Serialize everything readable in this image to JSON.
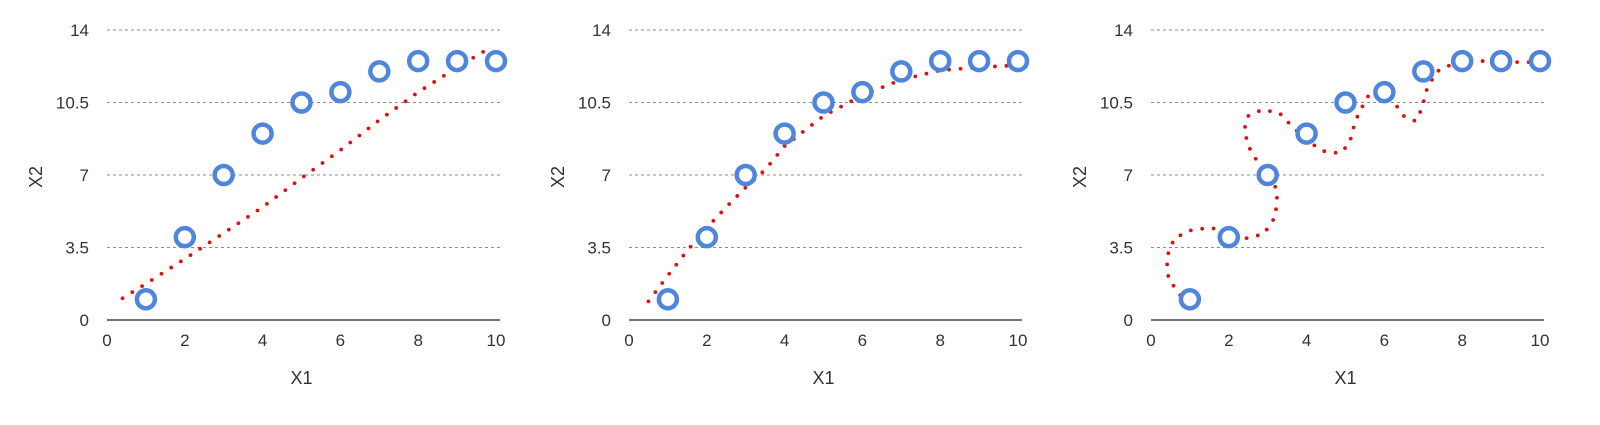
{
  "chart_data": [
    {
      "type": "scatter",
      "xlabel": "X1",
      "ylabel": "X2",
      "xlim": [
        0,
        10
      ],
      "ylim": [
        0,
        14
      ],
      "xticks": [
        "0",
        "2",
        "4",
        "6",
        "8",
        "10"
      ],
      "yticks": [
        "0",
        "3.5",
        "7",
        "10.5",
        "14"
      ],
      "grid": "horizontal dashed",
      "points": {
        "x": [
          1,
          2,
          3,
          4,
          5,
          6,
          7,
          8,
          9,
          10
        ],
        "y": [
          1,
          4,
          7,
          9,
          10.5,
          11,
          12,
          12.5,
          12.5,
          12.5
        ]
      },
      "fit_curve": {
        "style": "red dotted",
        "x": [
          0.4,
          1.0,
          2.0,
          3.0,
          4.0,
          5.0,
          6.0,
          7.0,
          8.0,
          9.0,
          9.9
        ],
        "y": [
          1.05,
          1.75,
          2.95,
          4.2,
          5.45,
          6.85,
          8.2,
          9.65,
          11.0,
          12.2,
          13.2
        ]
      }
    },
    {
      "type": "scatter",
      "xlabel": "X1",
      "ylabel": "X2",
      "xlim": [
        0,
        10
      ],
      "ylim": [
        0,
        14
      ],
      "xticks": [
        "0",
        "2",
        "4",
        "6",
        "8",
        "10"
      ],
      "yticks": [
        "0",
        "3.5",
        "7",
        "10.5",
        "14"
      ],
      "grid": "horizontal dashed",
      "points": {
        "x": [
          1,
          2,
          3,
          4,
          5,
          6,
          7,
          8,
          9,
          10
        ],
        "y": [
          1,
          4,
          7,
          9,
          10.5,
          11,
          12,
          12.5,
          12.5,
          12.5
        ]
      },
      "fit_curve": {
        "style": "red dotted",
        "x": [
          0.5,
          1.0,
          1.5,
          2.0,
          2.5,
          3.0,
          3.5,
          4.0,
          5.0,
          6.0,
          7.0,
          8.0,
          9.0,
          10.0
        ],
        "y": [
          0.9,
          2.15,
          3.35,
          4.45,
          5.45,
          6.4,
          7.25,
          8.4,
          9.85,
          10.85,
          11.6,
          12.05,
          12.2,
          12.3
        ]
      }
    },
    {
      "type": "scatter",
      "xlabel": "X1",
      "ylabel": "X2",
      "xlim": [
        0,
        10
      ],
      "ylim": [
        0,
        14
      ],
      "xticks": [
        "0",
        "2",
        "4",
        "6",
        "8",
        "10"
      ],
      "yticks": [
        "0",
        "3.5",
        "7",
        "10.5",
        "14"
      ],
      "grid": "horizontal dashed",
      "points": {
        "x": [
          1,
          2,
          3,
          4,
          5,
          6,
          7,
          8,
          9,
          10
        ],
        "y": [
          1,
          4,
          7,
          9,
          10.5,
          11,
          12,
          12.5,
          12.5,
          12.5
        ]
      },
      "fit_curve": {
        "style": "red dotted",
        "x": [
          0.75,
          0.45,
          0.4,
          0.6,
          1.05,
          1.55,
          2.0,
          2.45,
          2.9,
          3.2,
          3.25,
          3.05,
          2.75,
          2.5,
          2.4,
          2.5,
          2.85,
          3.3,
          3.65,
          4.05,
          4.45,
          4.85,
          5.1,
          5.25,
          5.55,
          5.95,
          6.15,
          6.25,
          6.5,
          6.8,
          6.95,
          7.1,
          7.35,
          7.8,
          8.3,
          8.8,
          9.3,
          9.8,
          10.0
        ],
        "y": [
          1.2,
          2.0,
          3.0,
          3.95,
          4.35,
          4.45,
          4.2,
          3.95,
          4.15,
          5.0,
          6.2,
          7.0,
          7.6,
          8.4,
          9.2,
          9.85,
          10.15,
          10.0,
          9.3,
          8.6,
          8.15,
          8.05,
          8.5,
          9.6,
          10.75,
          11.35,
          11.1,
          10.5,
          9.85,
          9.6,
          10.15,
          11.2,
          12.0,
          12.4,
          12.5,
          12.5,
          12.45,
          12.45,
          12.5
        ]
      }
    }
  ],
  "colors": {
    "marker": "#4f86dd",
    "fit": "#dd1111",
    "grid": "#8c8c8c",
    "axis": "#222222",
    "text": "#333333"
  }
}
